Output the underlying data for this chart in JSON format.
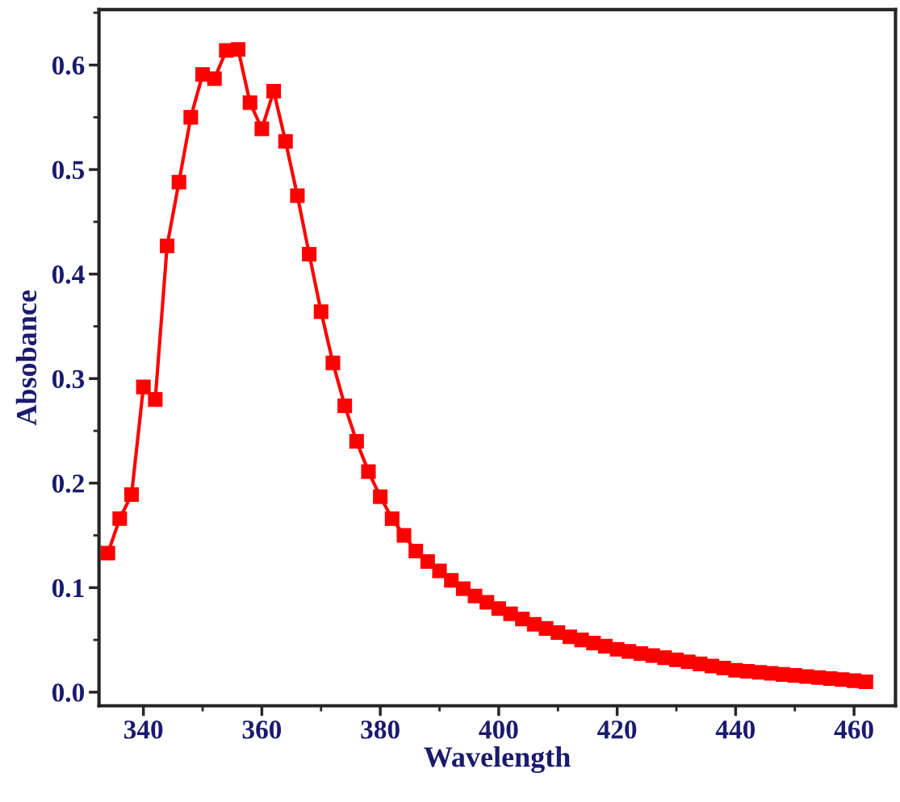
{
  "chart_data": {
    "type": "line",
    "xlabel": "Wavelength",
    "ylabel": "Absobance",
    "x": [
      334,
      336,
      338,
      340,
      342,
      344,
      346,
      348,
      350,
      352,
      354,
      356,
      358,
      360,
      362,
      364,
      366,
      368,
      370,
      372,
      374,
      376,
      378,
      380,
      382,
      384,
      386,
      388,
      390,
      392,
      394,
      396,
      398,
      400,
      402,
      404,
      406,
      408,
      410,
      412,
      414,
      416,
      418,
      420,
      422,
      424,
      426,
      428,
      430,
      432,
      434,
      436,
      438,
      440,
      442,
      444,
      446,
      448,
      450,
      452,
      454,
      456,
      458,
      460,
      462
    ],
    "series": [
      {
        "color": "#ff0000",
        "values": [
          0.133,
          0.166,
          0.189,
          0.292,
          0.28,
          0.427,
          0.488,
          0.55,
          0.591,
          0.587,
          0.614,
          0.615,
          0.564,
          0.539,
          0.575,
          0.527,
          0.475,
          0.419,
          0.364,
          0.315,
          0.274,
          0.24,
          0.211,
          0.187,
          0.166,
          0.15,
          0.135,
          0.125,
          0.116,
          0.107,
          0.099,
          0.092,
          0.086,
          0.08,
          0.075,
          0.07,
          0.065,
          0.061,
          0.057,
          0.053,
          0.05,
          0.047,
          0.044,
          0.041,
          0.039,
          0.037,
          0.035,
          0.033,
          0.031,
          0.029,
          0.027,
          0.025,
          0.023,
          0.021,
          0.02,
          0.019,
          0.018,
          0.017,
          0.016,
          0.015,
          0.014,
          0.013,
          0.012,
          0.011,
          0.01
        ]
      }
    ],
    "marker": "square",
    "line_style": "solid",
    "grid": false,
    "legend": false,
    "xlim": [
      332.5,
      467
    ],
    "ylim": [
      -0.013,
      0.653
    ],
    "xticks": [
      340,
      360,
      380,
      400,
      420,
      440,
      460
    ],
    "yticks": [
      {
        "value": 0.0,
        "label": "0.0"
      },
      0.1,
      0.2,
      0.3,
      0.4,
      0.5,
      0.6
    ]
  }
}
